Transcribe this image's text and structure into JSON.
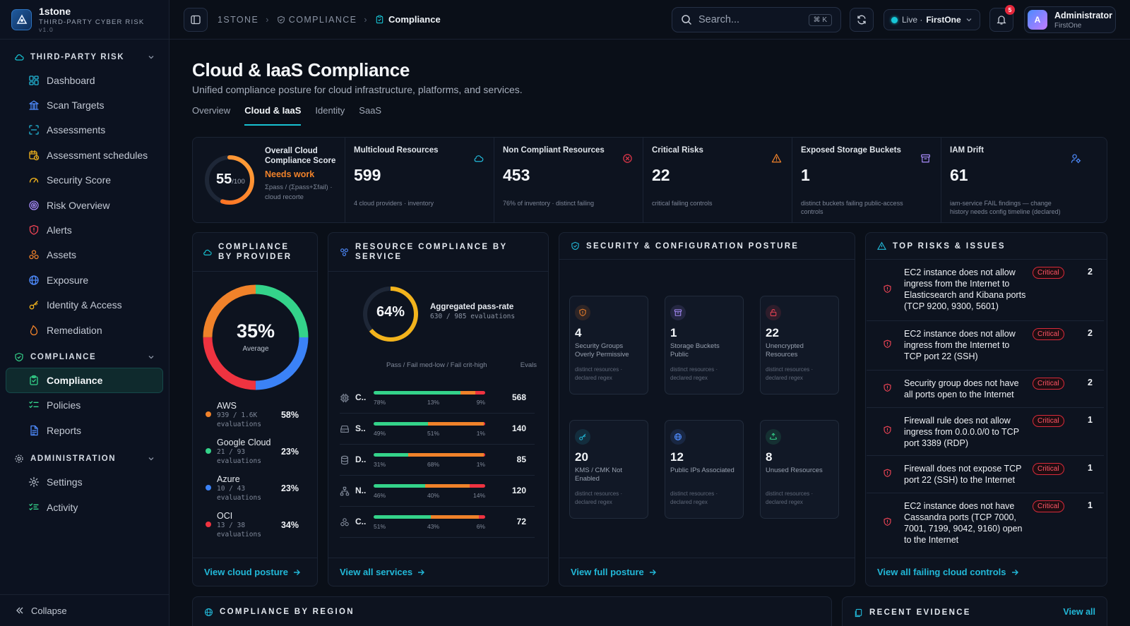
{
  "brand": {
    "name": "1stone",
    "tagline": "THIRD-PARTY CYBER RISK",
    "version": "v1.0"
  },
  "sidebar": {
    "section_tpr": "THIRD-PARTY RISK",
    "tpr_items": [
      {
        "label": "Dashboard",
        "icon": "dashboard-icon"
      },
      {
        "label": "Scan Targets",
        "icon": "building-icon"
      },
      {
        "label": "Assessments",
        "icon": "scan-icon"
      },
      {
        "label": "Assessment schedules",
        "icon": "calendar-clock-icon"
      },
      {
        "label": "Security Score",
        "icon": "gauge-icon"
      },
      {
        "label": "Risk Overview",
        "icon": "target-icon"
      },
      {
        "label": "Alerts",
        "icon": "shield-alert-icon"
      },
      {
        "label": "Assets",
        "icon": "boxes-icon"
      },
      {
        "label": "Exposure",
        "icon": "globe-icon"
      },
      {
        "label": "Identity & Access",
        "icon": "key-icon"
      },
      {
        "label": "Remediation",
        "icon": "flame-icon"
      }
    ],
    "section_compliance": "COMPLIANCE",
    "compliance_items": [
      {
        "label": "Compliance",
        "icon": "clipboard-check-icon"
      },
      {
        "label": "Policies",
        "icon": "list-checks-icon"
      },
      {
        "label": "Reports",
        "icon": "file-text-icon"
      }
    ],
    "section_admin": "ADMINISTRATION",
    "admin_items": [
      {
        "label": "Settings",
        "icon": "gear-icon"
      },
      {
        "label": "Activity",
        "icon": "list-activity-icon"
      }
    ],
    "collapse_label": "Collapse"
  },
  "topbar": {
    "breadcrumb": [
      "1STONE",
      "COMPLIANCE"
    ],
    "current": "Compliance",
    "search_placeholder": "Search...",
    "search_shortcut": "⌘ K",
    "env_status": "Live ·",
    "env_name": "FirstOne",
    "notification_count": "5",
    "user_initial": "A",
    "user_name": "Administrator",
    "user_org": "FirstOne"
  },
  "page": {
    "title": "Cloud & IaaS Compliance",
    "subtitle": "Unified compliance posture for cloud infrastructure, platforms, and services.",
    "tabs": [
      "Overview",
      "Cloud & IaaS",
      "Identity",
      "SaaS"
    ],
    "active_tab": 1
  },
  "score": {
    "value": "55",
    "max": "/100",
    "fraction": 0.55,
    "label": "Overall Cloud Compliance Score",
    "status": "Needs work",
    "formula": "Σpass / (Σpass+Σfail) · cloud recorte"
  },
  "kpis": [
    {
      "title": "Multicloud Resources",
      "value": "599",
      "sub": "4 cloud providers · inventory",
      "icon": "cloud-icon",
      "color": "#22b8d8"
    },
    {
      "title": "Non Compliant Resources",
      "value": "453",
      "sub": "76% of inventory · distinct failing",
      "icon": "x-circle-icon",
      "color": "#e5374a"
    },
    {
      "title": "Critical Risks",
      "value": "22",
      "sub": "critical failing controls",
      "icon": "warning-triangle-icon",
      "color": "#f0822a"
    },
    {
      "title": "Exposed Storage Buckets",
      "value": "1",
      "sub": "distinct buckets failing public-access controls",
      "icon": "archive-icon",
      "color": "#a78bfa"
    },
    {
      "title": "IAM Drift",
      "value": "61",
      "sub": "iam-service FAIL findings — change history needs config timeline (declared)",
      "icon": "user-cog-icon",
      "color": "#4f8cff"
    }
  ],
  "providers_panel": {
    "title": "COMPLIANCE BY PROVIDER",
    "average": "35%",
    "average_label": "Average",
    "providers": [
      {
        "name": "AWS",
        "evals": "939 / 1.6K",
        "evals_label": "evaluations",
        "pct": "58%",
        "color": "#f0822a"
      },
      {
        "name": "Google Cloud",
        "evals": "21 / 93",
        "evals_label": "evaluations",
        "pct": "23%",
        "color": "#34d38a"
      },
      {
        "name": "Azure",
        "evals": "10 / 43",
        "evals_label": "evaluations",
        "pct": "23%",
        "color": "#3b82f6"
      },
      {
        "name": "OCI",
        "evals": "13 / 38",
        "evals_label": "evaluations",
        "pct": "34%",
        "color": "#ef3340"
      }
    ],
    "link": "View cloud posture"
  },
  "services_panel": {
    "title": "RESOURCE COMPLIANCE BY SERVICE",
    "pass_rate": "64%",
    "pass_fraction": 0.64,
    "pass_rate_label": "Aggregated pass-rate",
    "pass_rate_sub": "630 / 985 evaluations",
    "legend": "Pass / Fail med-low / Fail crit-high",
    "evals_header": "Evals",
    "services": [
      {
        "label": "C..",
        "icon": "cpu-icon",
        "pass": 78,
        "med": 13,
        "crit": 9,
        "pass_l": "78%",
        "med_l": "13%",
        "crit_l": "9%",
        "evals": "568"
      },
      {
        "label": "S..",
        "icon": "storage-icon",
        "pass": 49,
        "med": 51,
        "crit": 1,
        "pass_l": "49%",
        "med_l": "51%",
        "crit_l": "1%",
        "evals": "140"
      },
      {
        "label": "D..",
        "icon": "database-icon",
        "pass": 31,
        "med": 68,
        "crit": 1,
        "pass_l": "31%",
        "med_l": "68%",
        "crit_l": "1%",
        "evals": "85"
      },
      {
        "label": "N..",
        "icon": "network-icon",
        "pass": 46,
        "med": 40,
        "crit": 14,
        "pass_l": "46%",
        "med_l": "40%",
        "crit_l": "14%",
        "evals": "120"
      },
      {
        "label": "C..",
        "icon": "container-icon",
        "pass": 51,
        "med": 43,
        "crit": 6,
        "pass_l": "51%",
        "med_l": "43%",
        "crit_l": "6%",
        "evals": "72"
      }
    ],
    "link": "View all services"
  },
  "posture_panel": {
    "title": "SECURITY & CONFIGURATION POSTURE",
    "tiles": [
      {
        "value": "4",
        "label": "Security Groups Overly Permissive",
        "note": "distinct resources · declared regex",
        "icon": "shield-icon",
        "color": "#f0822a"
      },
      {
        "value": "1",
        "label": "Storage Buckets Public",
        "note": "distinct resources · declared regex",
        "icon": "archive-icon",
        "color": "#a78bfa"
      },
      {
        "value": "22",
        "label": "Unencrypted Resources",
        "note": "distinct resources · declared regex",
        "icon": "lock-open-icon",
        "color": "#ef4455"
      },
      {
        "value": "20",
        "label": "KMS / CMK Not Enabled",
        "note": "distinct resources · declared regex",
        "icon": "key-icon",
        "color": "#22b8d8"
      },
      {
        "value": "12",
        "label": "Public IPs Associated",
        "note": "distinct resources · declared regex",
        "icon": "globe-icon",
        "color": "#4f8cff"
      },
      {
        "value": "8",
        "label": "Unused Resources",
        "note": "distinct resources · declared regex",
        "icon": "recycle-icon",
        "color": "#34d38a"
      }
    ],
    "link": "View full posture"
  },
  "risks_panel": {
    "title": "TOP RISKS & ISSUES",
    "items": [
      {
        "text": "EC2 instance does not allow ingress from the Internet to Elasticsearch and Kibana ports (TCP 9200, 9300, 5601)",
        "severity": "Critical",
        "count": "2"
      },
      {
        "text": "EC2 instance does not allow ingress from the Internet to TCP port 22 (SSH)",
        "severity": "Critical",
        "count": "2"
      },
      {
        "text": "Security group does not have all ports open to the Internet",
        "severity": "Critical",
        "count": "2"
      },
      {
        "text": "Firewall rule does not allow ingress from 0.0.0.0/0 to TCP port 3389 (RDP)",
        "severity": "Critical",
        "count": "1"
      },
      {
        "text": "Firewall does not expose TCP port 22 (SSH) to the Internet",
        "severity": "Critical",
        "count": "1"
      },
      {
        "text": "EC2 instance does not have Cassandra ports (TCP 7000, 7001, 7199, 9042, 9160) open to the Internet",
        "severity": "Critical",
        "count": "1"
      }
    ],
    "link": "View all failing cloud controls"
  },
  "region_panel": {
    "title": "COMPLIANCE BY REGION"
  },
  "evidence_panel": {
    "title": "RECENT EVIDENCE",
    "link": "View all"
  },
  "colors": {
    "accent": "#17c1d1",
    "pass": "#34d38a",
    "fail_med": "#f0822a",
    "fail_crit": "#ef3340",
    "score_warn": "#f0822a"
  }
}
